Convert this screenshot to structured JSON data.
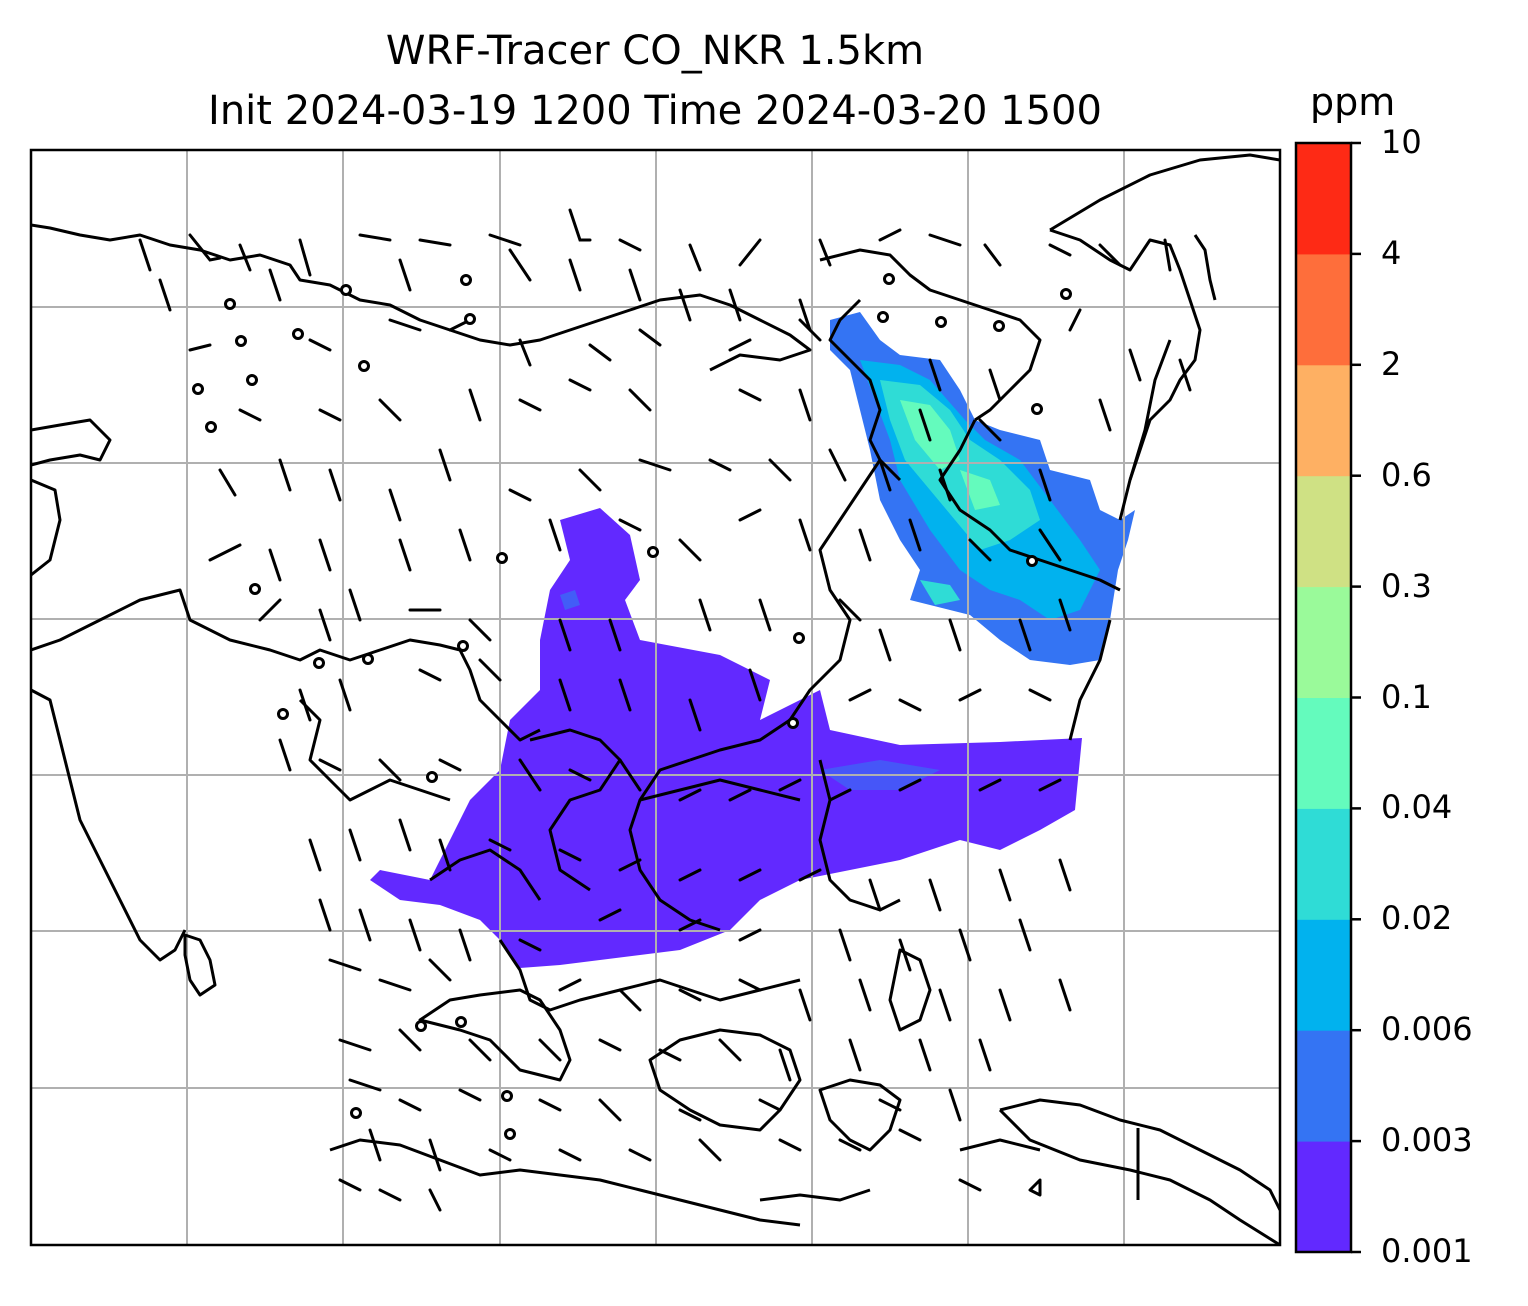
{
  "title": {
    "line1": "WRF-Tracer CO_NKR 1.5km",
    "line2": "Init 2024-03-19 1200 Time 2024-03-20 1500"
  },
  "colorbar": {
    "unit": "ppm",
    "levels": [
      "0.001",
      "0.003",
      "0.006",
      "0.02",
      "0.04",
      "0.1",
      "0.3",
      "0.6",
      "2",
      "4",
      "10"
    ],
    "colors": [
      "#6229ff",
      "#3474f3",
      "#01b2ee",
      "#2fdcd6",
      "#64fbbd",
      "#9afa9a",
      "#cfe184",
      "#feb063",
      "#fe6e3b",
      "#fe2a15"
    ]
  },
  "map": {
    "gridlines": true,
    "tracer_plume_color": "#6229ff",
    "northeast_plume_colors": [
      "#01b2ee",
      "#2fdcd6",
      "#64fbbd",
      "#3474f3"
    ]
  }
}
